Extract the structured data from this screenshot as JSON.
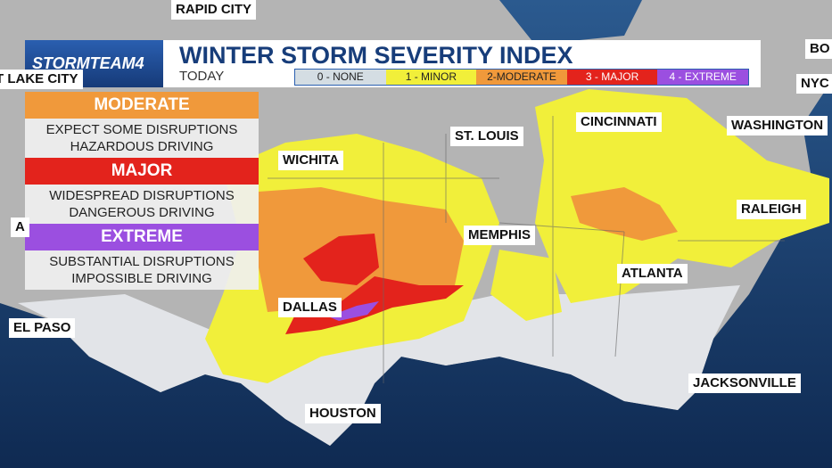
{
  "header": {
    "logo": "STORMTEAM4",
    "title": "WINTER STORM SEVERITY INDEX",
    "subtitle": "TODAY",
    "scale": [
      "0 - NONE",
      "1 - MINOR",
      "2-MODERATE",
      "3 - MAJOR",
      "4 - EXTREME"
    ]
  },
  "panel": [
    {
      "level": "MODERATE",
      "lines": [
        "EXPECT SOME DISRUPTIONS",
        "HAZARDOUS DRIVING"
      ]
    },
    {
      "level": "MAJOR",
      "lines": [
        "WIDESPREAD DISRUPTIONS",
        "DANGEROUS DRIVING"
      ]
    },
    {
      "level": "EXTREME",
      "lines": [
        "SUBSTANTIAL DISRUPTIONS",
        "IMPOSSIBLE DRIVING"
      ]
    }
  ],
  "cities": [
    "RAPID CITY",
    "T LAKE CITY",
    "BO",
    "NYC",
    "CINCINNATI",
    "WASHINGTON",
    "ST. LOUIS",
    "WICHITA",
    "RALEIGH",
    "A",
    "MEMPHIS",
    "ATLANTA",
    "DALLAS",
    "EL PASO",
    "JACKSONVILLE",
    "HOUSTON"
  ]
}
